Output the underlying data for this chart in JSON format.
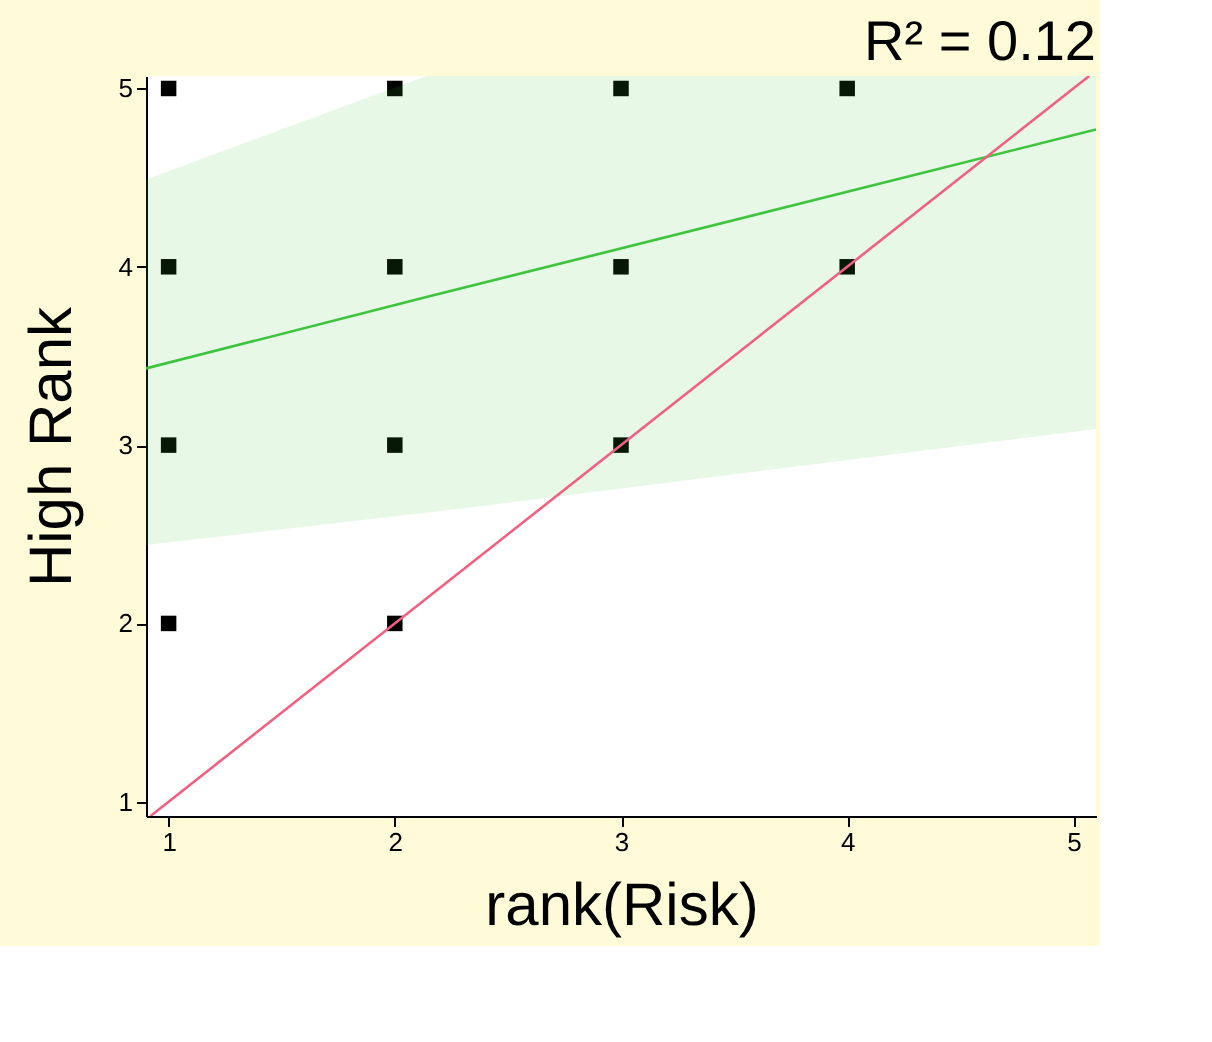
{
  "chart_data": {
    "type": "scatter",
    "title": "R² = 0.12",
    "xlabel": "rank(Risk)",
    "ylabel": "High Rank",
    "xlim": [
      0.9,
      5.1
    ],
    "ylim": [
      0.92,
      5.07
    ],
    "xticks": [
      1,
      2,
      3,
      4,
      5
    ],
    "yticks": [
      1,
      2,
      3,
      4,
      5
    ],
    "grid": false,
    "series": [
      {
        "color": "#000000",
        "marker": "square",
        "x": [
          1,
          2,
          3,
          4,
          1,
          2,
          3,
          4,
          1,
          2,
          3,
          1,
          2
        ],
        "values": [
          5,
          5,
          5,
          5,
          4,
          4,
          4,
          4,
          3,
          3,
          3,
          2,
          2
        ]
      },
      {
        "type": "line",
        "color": "#3cc43c",
        "x": [
          0.9,
          2.14,
          5.1
        ],
        "values": [
          3.43,
          3.83,
          4.77
        ],
        "lower": [
          2.44,
          2.62,
          3.09
        ],
        "upper": [
          4.49,
          5.07,
          5.07
        ]
      },
      {
        "type": "line",
        "color": "#f06080",
        "x": [
          0.92,
          5.07
        ],
        "values": [
          0.92,
          5.07
        ]
      }
    ]
  }
}
